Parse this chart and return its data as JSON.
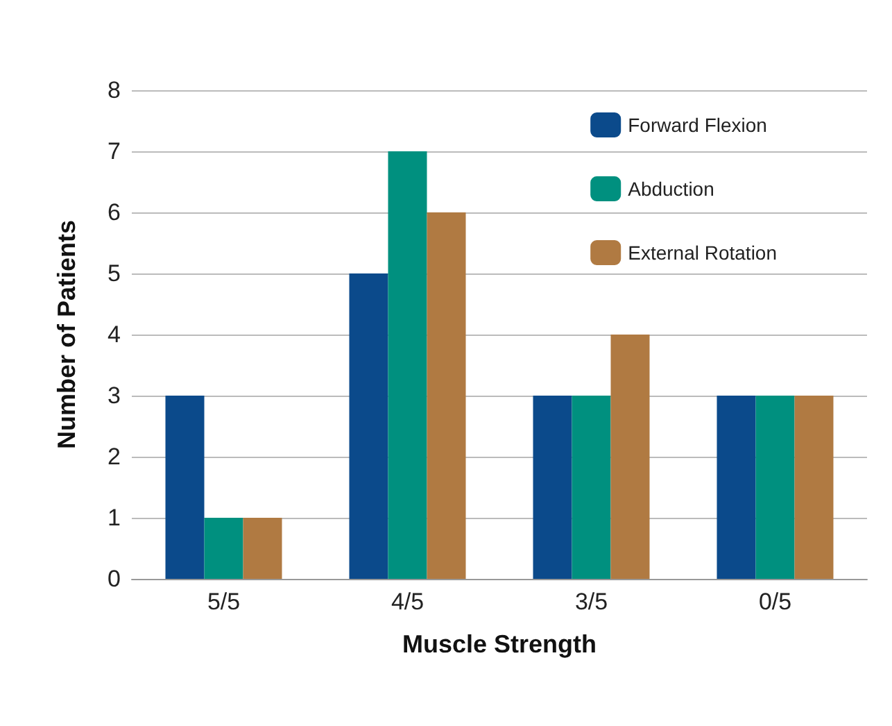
{
  "chart_data": {
    "type": "bar",
    "xlabel": "Muscle Strength",
    "ylabel": "Number of Patients",
    "categories": [
      "5/5",
      "4/5",
      "3/5",
      "0/5"
    ],
    "series": [
      {
        "name": "Forward Flexion",
        "color": "#0b4a8b",
        "values": [
          3,
          5,
          3,
          3
        ]
      },
      {
        "name": "Abduction",
        "color": "#00907f",
        "values": [
          1,
          7,
          3,
          3
        ]
      },
      {
        "name": "External Rotation",
        "color": "#b07a42",
        "values": [
          1,
          6,
          4,
          3
        ]
      }
    ],
    "ylim": [
      0,
      8
    ],
    "yticks": [
      0,
      1,
      2,
      3,
      4,
      5,
      6,
      7,
      8
    ],
    "grid": "y",
    "legend": "top right"
  }
}
